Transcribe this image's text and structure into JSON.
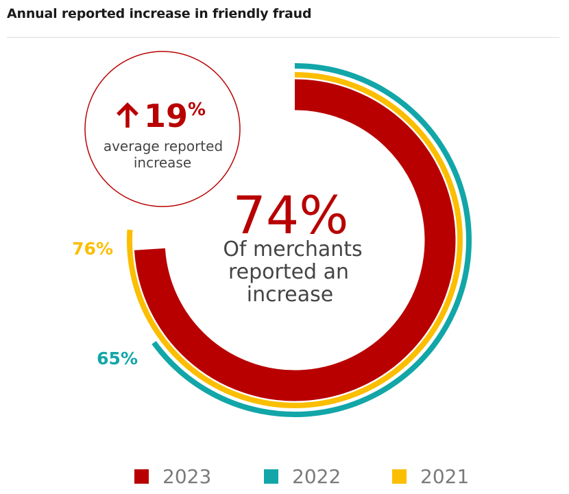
{
  "title": "Annual reported increase in friendly fraud",
  "chart_data": {
    "type": "radial-bar",
    "unit": "%",
    "series": [
      {
        "name": "2023",
        "value": 74,
        "color": "#b80000"
      },
      {
        "name": "2022",
        "value": 65,
        "color": "#12a6a8"
      },
      {
        "name": "2021",
        "value": 76,
        "color": "#fbbe00"
      }
    ],
    "center": {
      "value": "74%",
      "caption": [
        "Of merchants",
        "reported an",
        "increase"
      ]
    },
    "callout": {
      "arrow": "up-arrow-icon",
      "value": "19",
      "unit": "%",
      "caption": [
        "average reported",
        "increase"
      ]
    },
    "labels": {
      "2021": "76%",
      "2022": "65%"
    },
    "legend": [
      "2023",
      "2022",
      "2021"
    ]
  }
}
